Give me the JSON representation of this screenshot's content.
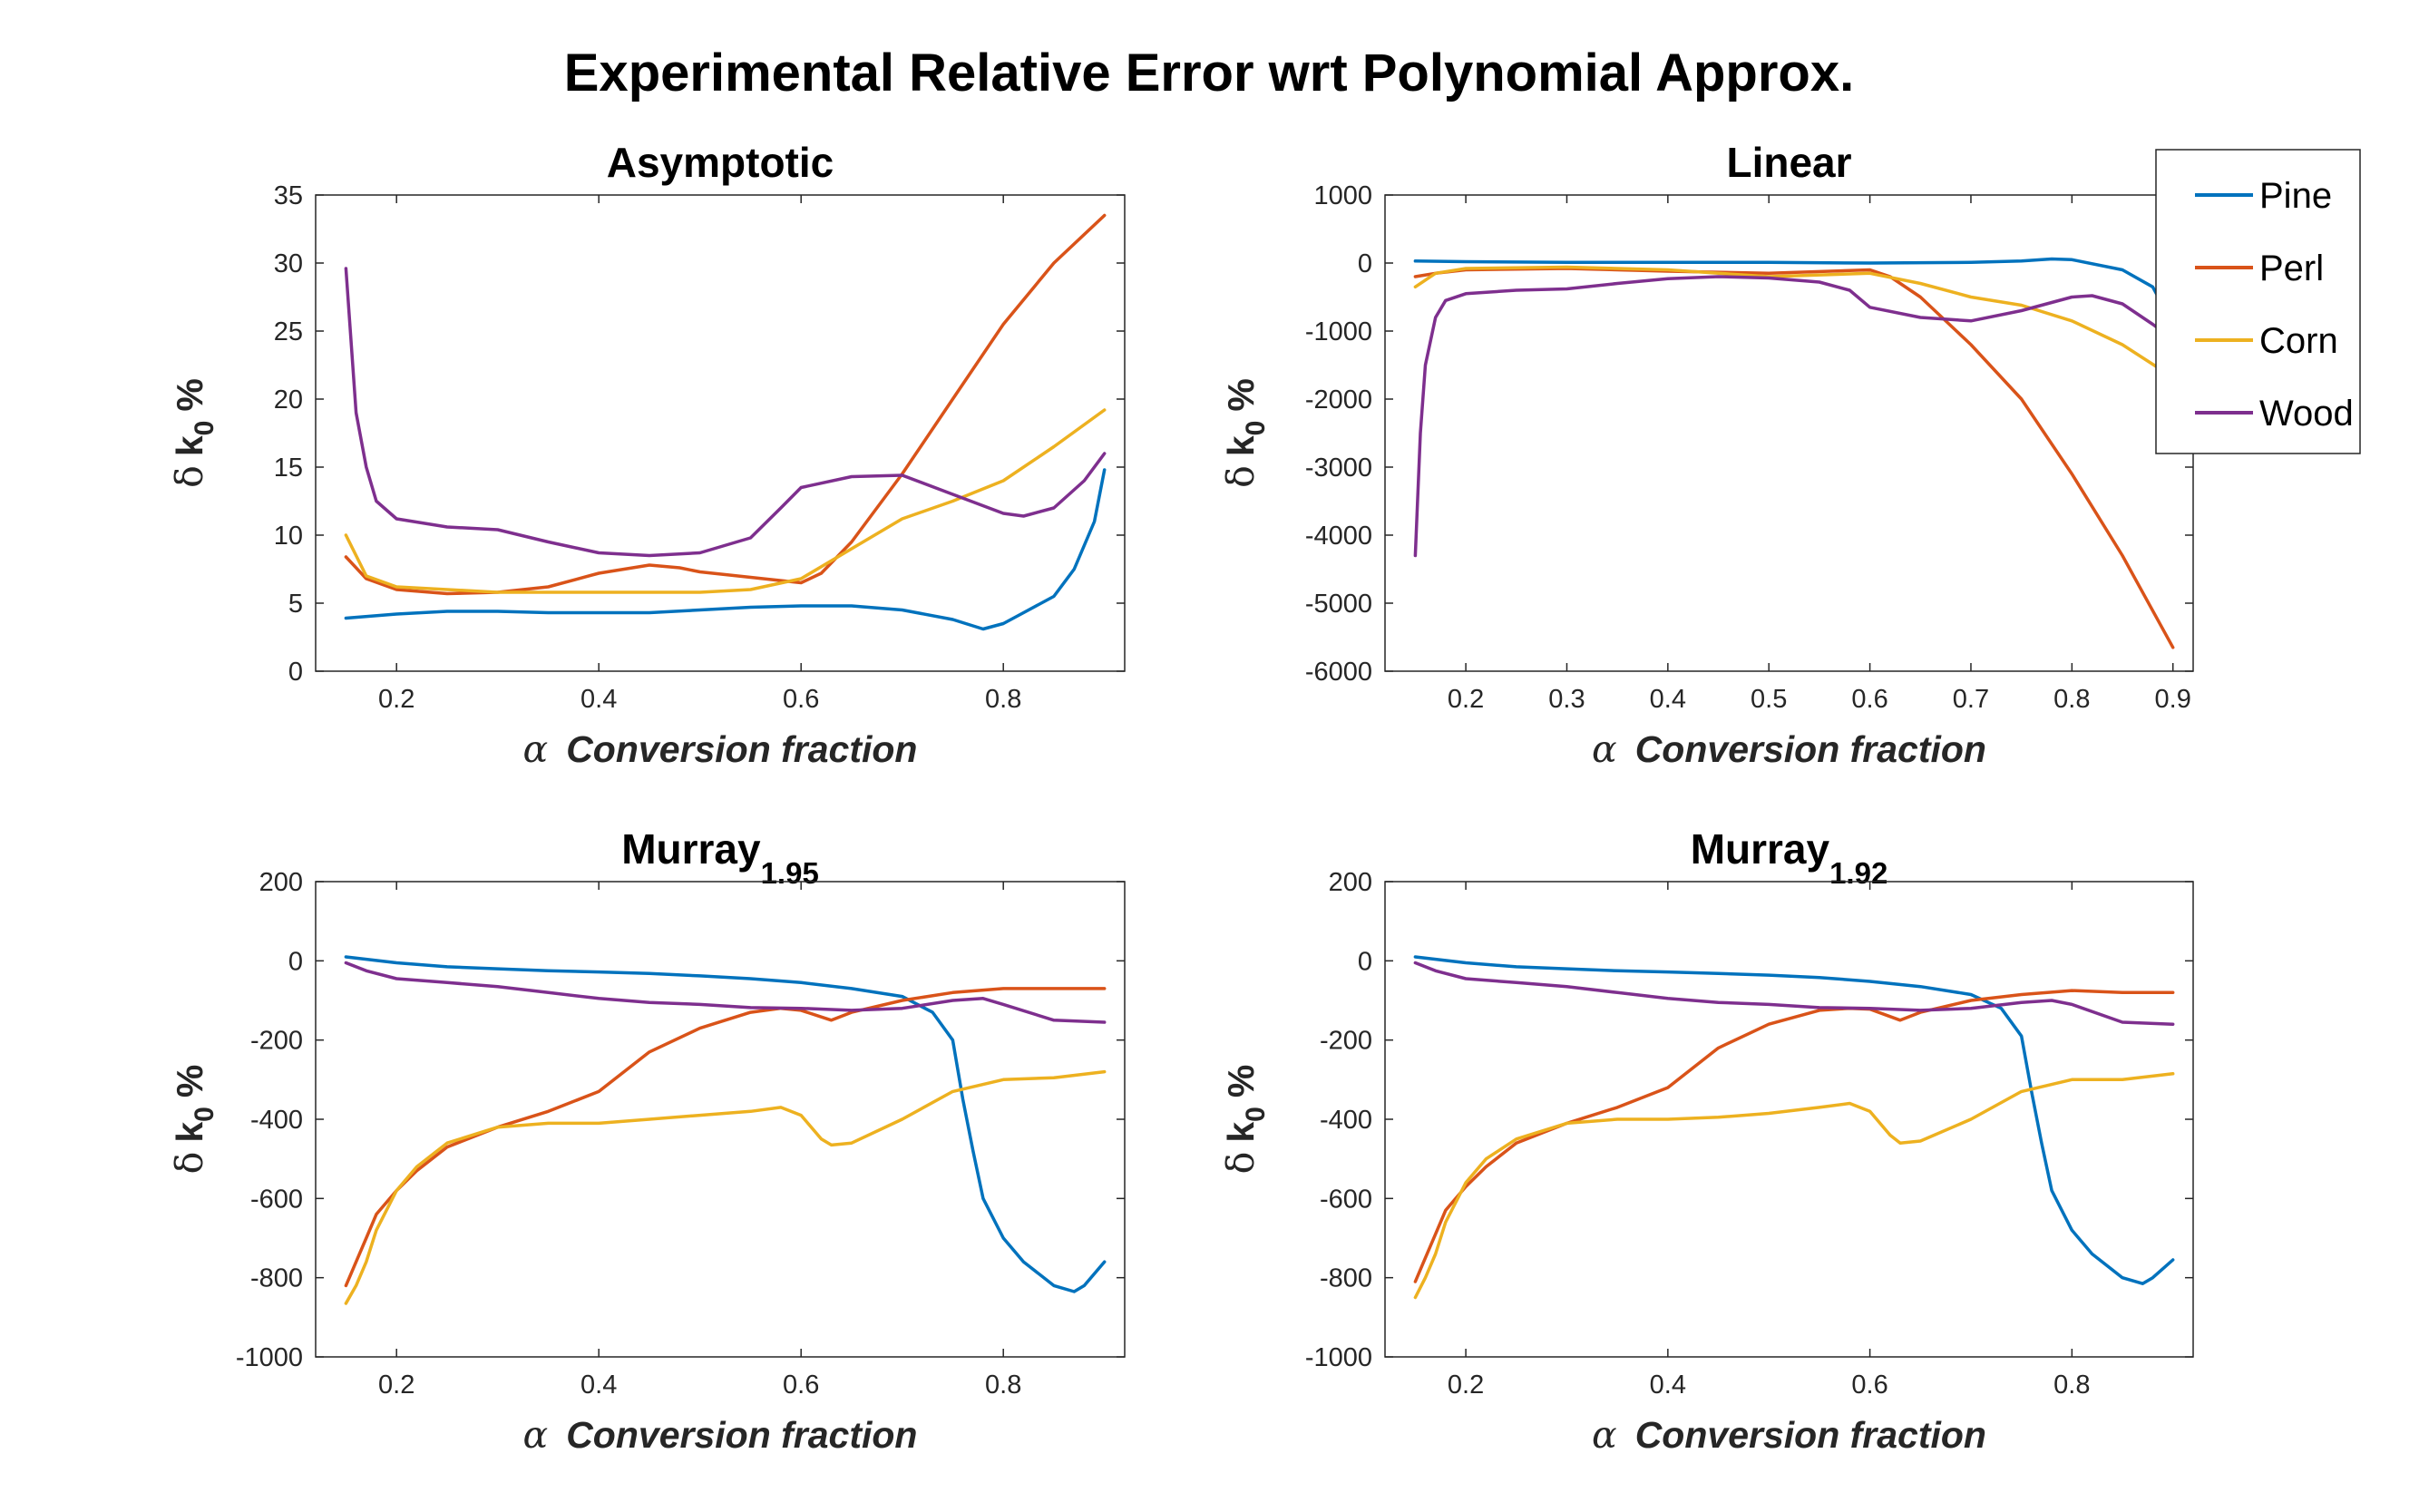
{
  "suptitle": "Experimental Relative Error wrt Polynomial Approx.",
  "legend": {
    "placement": "top-right",
    "entries": [
      {
        "name": "Pine",
        "color": "#0072BD"
      },
      {
        "name": "Perl",
        "color": "#D95319"
      },
      {
        "name": "Corn",
        "color": "#EDB120"
      },
      {
        "name": "Wood",
        "color": "#7E2F8E"
      }
    ]
  },
  "chart_data": [
    {
      "type": "line",
      "title": "Asymptotic",
      "title_sub": "",
      "xlabel_symbol": "α",
      "xlabel": "Conversion fraction",
      "ylabel_symbol": "δ",
      "ylabel_main": "k",
      "ylabel_sub": "0",
      "ylabel_unit": "%",
      "xlim": [
        0.12,
        0.92
      ],
      "ylim": [
        0,
        35
      ],
      "xticks": [
        0.2,
        0.4,
        0.6,
        0.8
      ],
      "yticks": [
        0,
        5,
        10,
        15,
        20,
        25,
        30,
        35
      ],
      "series": [
        {
          "name": "Pine",
          "x": [
            0.15,
            0.2,
            0.25,
            0.3,
            0.35,
            0.4,
            0.45,
            0.5,
            0.55,
            0.6,
            0.65,
            0.7,
            0.75,
            0.78,
            0.8,
            0.82,
            0.85,
            0.87,
            0.89,
            0.9
          ],
          "y": [
            3.9,
            4.2,
            4.4,
            4.4,
            4.3,
            4.3,
            4.3,
            4.5,
            4.7,
            4.8,
            4.8,
            4.5,
            3.8,
            3.1,
            3.5,
            4.3,
            5.5,
            7.5,
            11,
            14.8
          ]
        },
        {
          "name": "Perl",
          "x": [
            0.15,
            0.17,
            0.2,
            0.25,
            0.3,
            0.35,
            0.4,
            0.45,
            0.48,
            0.5,
            0.55,
            0.6,
            0.62,
            0.65,
            0.7,
            0.75,
            0.8,
            0.85,
            0.9
          ],
          "y": [
            8.4,
            6.8,
            6.0,
            5.7,
            5.8,
            6.2,
            7.2,
            7.8,
            7.6,
            7.3,
            6.9,
            6.5,
            7.2,
            9.5,
            14.5,
            20,
            25.5,
            30,
            33.5
          ]
        },
        {
          "name": "Corn",
          "x": [
            0.15,
            0.17,
            0.2,
            0.25,
            0.3,
            0.35,
            0.4,
            0.45,
            0.5,
            0.55,
            0.6,
            0.65,
            0.7,
            0.75,
            0.8,
            0.85,
            0.9
          ],
          "y": [
            10,
            7.0,
            6.2,
            6.0,
            5.8,
            5.8,
            5.8,
            5.8,
            5.8,
            6.0,
            6.8,
            9.0,
            11.2,
            12.5,
            14.0,
            16.5,
            19.2
          ]
        },
        {
          "name": "Wood",
          "x": [
            0.15,
            0.16,
            0.17,
            0.18,
            0.2,
            0.25,
            0.3,
            0.35,
            0.4,
            0.45,
            0.5,
            0.55,
            0.58,
            0.6,
            0.65,
            0.7,
            0.75,
            0.8,
            0.82,
            0.85,
            0.88,
            0.9
          ],
          "y": [
            29.6,
            19,
            15,
            12.5,
            11.2,
            10.6,
            10.4,
            9.5,
            8.7,
            8.5,
            8.7,
            9.8,
            12,
            13.5,
            14.3,
            14.4,
            13,
            11.6,
            11.4,
            12,
            14,
            16
          ]
        }
      ]
    },
    {
      "type": "line",
      "title": "Linear",
      "title_sub": "",
      "xlabel_symbol": "α",
      "xlabel": "Conversion fraction",
      "ylabel_symbol": "δ",
      "ylabel_main": "k",
      "ylabel_sub": "0",
      "ylabel_unit": "%",
      "xlim": [
        0.12,
        0.92
      ],
      "ylim": [
        -6000,
        1000
      ],
      "xticks": [
        0.2,
        0.3,
        0.4,
        0.5,
        0.6,
        0.7,
        0.8,
        0.9
      ],
      "yticks": [
        -6000,
        -5000,
        -4000,
        -3000,
        -2000,
        -1000,
        0,
        1000
      ],
      "series": [
        {
          "name": "Pine",
          "x": [
            0.15,
            0.2,
            0.3,
            0.4,
            0.5,
            0.6,
            0.7,
            0.75,
            0.78,
            0.8,
            0.85,
            0.88,
            0.9
          ],
          "y": [
            30,
            20,
            10,
            10,
            10,
            0,
            10,
            30,
            60,
            50,
            -100,
            -350,
            -900
          ]
        },
        {
          "name": "Perl",
          "x": [
            0.15,
            0.17,
            0.2,
            0.3,
            0.4,
            0.5,
            0.6,
            0.62,
            0.65,
            0.7,
            0.75,
            0.8,
            0.85,
            0.9
          ],
          "y": [
            -200,
            -150,
            -100,
            -80,
            -120,
            -150,
            -100,
            -200,
            -500,
            -1200,
            -2000,
            -3100,
            -4300,
            -5650
          ]
        },
        {
          "name": "Corn",
          "x": [
            0.15,
            0.17,
            0.2,
            0.3,
            0.4,
            0.5,
            0.6,
            0.65,
            0.7,
            0.75,
            0.8,
            0.85,
            0.9
          ],
          "y": [
            -350,
            -150,
            -80,
            -60,
            -100,
            -200,
            -150,
            -300,
            -500,
            -620,
            -850,
            -1200,
            -1680
          ]
        },
        {
          "name": "Wood",
          "x": [
            0.15,
            0.155,
            0.16,
            0.17,
            0.18,
            0.2,
            0.25,
            0.3,
            0.35,
            0.4,
            0.45,
            0.5,
            0.55,
            0.58,
            0.6,
            0.65,
            0.7,
            0.75,
            0.8,
            0.82,
            0.85,
            0.88,
            0.9
          ],
          "y": [
            -4300,
            -2500,
            -1500,
            -800,
            -550,
            -450,
            -400,
            -380,
            -300,
            -230,
            -200,
            -220,
            -280,
            -400,
            -650,
            -800,
            -850,
            -700,
            -500,
            -480,
            -600,
            -900,
            -1120
          ]
        }
      ]
    },
    {
      "type": "line",
      "title": "Murray",
      "title_sub": "1.95",
      "xlabel_symbol": "α",
      "xlabel": "Conversion fraction",
      "ylabel_symbol": "δ",
      "ylabel_main": "k",
      "ylabel_sub": "0",
      "ylabel_unit": "%",
      "xlim": [
        0.12,
        0.92
      ],
      "ylim": [
        -1000,
        200
      ],
      "xticks": [
        0.2,
        0.4,
        0.6,
        0.8
      ],
      "yticks": [
        -1000,
        -800,
        -600,
        -400,
        -200,
        0,
        200
      ],
      "series": [
        {
          "name": "Pine",
          "x": [
            0.15,
            0.2,
            0.25,
            0.3,
            0.35,
            0.4,
            0.45,
            0.5,
            0.55,
            0.6,
            0.65,
            0.7,
            0.73,
            0.75,
            0.76,
            0.77,
            0.78,
            0.8,
            0.82,
            0.85,
            0.87,
            0.88,
            0.9
          ],
          "y": [
            10,
            -5,
            -15,
            -20,
            -25,
            -28,
            -32,
            -38,
            -45,
            -55,
            -70,
            -90,
            -130,
            -200,
            -350,
            -480,
            -600,
            -700,
            -760,
            -820,
            -835,
            -820,
            -760
          ]
        },
        {
          "name": "Perl",
          "x": [
            0.15,
            0.16,
            0.17,
            0.18,
            0.2,
            0.22,
            0.25,
            0.3,
            0.35,
            0.4,
            0.45,
            0.5,
            0.55,
            0.58,
            0.6,
            0.63,
            0.65,
            0.7,
            0.75,
            0.8,
            0.85,
            0.9
          ],
          "y": [
            -820,
            -760,
            -700,
            -640,
            -580,
            -530,
            -470,
            -420,
            -380,
            -330,
            -230,
            -170,
            -130,
            -120,
            -125,
            -150,
            -130,
            -100,
            -80,
            -70,
            -70,
            -70
          ]
        },
        {
          "name": "Corn",
          "x": [
            0.15,
            0.16,
            0.17,
            0.18,
            0.2,
            0.22,
            0.25,
            0.3,
            0.35,
            0.4,
            0.45,
            0.5,
            0.55,
            0.58,
            0.6,
            0.62,
            0.63,
            0.65,
            0.7,
            0.75,
            0.8,
            0.85,
            0.9
          ],
          "y": [
            -865,
            -820,
            -760,
            -680,
            -580,
            -520,
            -460,
            -420,
            -410,
            -410,
            -400,
            -390,
            -380,
            -370,
            -390,
            -450,
            -465,
            -460,
            -400,
            -330,
            -300,
            -295,
            -280
          ]
        },
        {
          "name": "Wood",
          "x": [
            0.15,
            0.17,
            0.2,
            0.25,
            0.3,
            0.35,
            0.4,
            0.45,
            0.5,
            0.55,
            0.6,
            0.65,
            0.7,
            0.75,
            0.78,
            0.8,
            0.85,
            0.9
          ],
          "y": [
            -5,
            -25,
            -45,
            -55,
            -65,
            -80,
            -95,
            -105,
            -110,
            -118,
            -120,
            -125,
            -120,
            -100,
            -95,
            -110,
            -150,
            -155
          ]
        }
      ]
    },
    {
      "type": "line",
      "title": "Murray",
      "title_sub": "1.92",
      "xlabel_symbol": "α",
      "xlabel": "Conversion fraction",
      "ylabel_symbol": "δ",
      "ylabel_main": "k",
      "ylabel_sub": "0",
      "ylabel_unit": "%",
      "xlim": [
        0.12,
        0.92
      ],
      "ylim": [
        -1000,
        200
      ],
      "xticks": [
        0.2,
        0.4,
        0.6,
        0.8
      ],
      "yticks": [
        -1000,
        -800,
        -600,
        -400,
        -200,
        0,
        200
      ],
      "series": [
        {
          "name": "Pine",
          "x": [
            0.15,
            0.2,
            0.25,
            0.3,
            0.35,
            0.4,
            0.45,
            0.5,
            0.55,
            0.6,
            0.65,
            0.7,
            0.73,
            0.75,
            0.76,
            0.77,
            0.78,
            0.8,
            0.82,
            0.85,
            0.87,
            0.88,
            0.9
          ],
          "y": [
            10,
            -5,
            -15,
            -20,
            -25,
            -28,
            -32,
            -36,
            -42,
            -52,
            -65,
            -85,
            -120,
            -190,
            -330,
            -460,
            -580,
            -680,
            -740,
            -800,
            -815,
            -800,
            -755
          ]
        },
        {
          "name": "Perl",
          "x": [
            0.15,
            0.16,
            0.17,
            0.18,
            0.2,
            0.22,
            0.25,
            0.3,
            0.35,
            0.4,
            0.45,
            0.5,
            0.55,
            0.58,
            0.6,
            0.63,
            0.65,
            0.7,
            0.75,
            0.8,
            0.85,
            0.9
          ],
          "y": [
            -810,
            -750,
            -690,
            -630,
            -570,
            -520,
            -460,
            -410,
            -370,
            -320,
            -220,
            -160,
            -125,
            -120,
            -122,
            -150,
            -130,
            -100,
            -85,
            -75,
            -80,
            -80
          ]
        },
        {
          "name": "Corn",
          "x": [
            0.15,
            0.16,
            0.17,
            0.18,
            0.2,
            0.22,
            0.25,
            0.3,
            0.35,
            0.4,
            0.45,
            0.5,
            0.55,
            0.58,
            0.6,
            0.62,
            0.63,
            0.65,
            0.7,
            0.75,
            0.8,
            0.85,
            0.9
          ],
          "y": [
            -850,
            -800,
            -740,
            -660,
            -560,
            -500,
            -450,
            -410,
            -400,
            -400,
            -395,
            -385,
            -370,
            -360,
            -380,
            -440,
            -460,
            -455,
            -400,
            -330,
            -300,
            -300,
            -285
          ]
        },
        {
          "name": "Wood",
          "x": [
            0.15,
            0.17,
            0.2,
            0.25,
            0.3,
            0.35,
            0.4,
            0.45,
            0.5,
            0.55,
            0.6,
            0.65,
            0.7,
            0.75,
            0.78,
            0.8,
            0.85,
            0.9
          ],
          "y": [
            -5,
            -25,
            -45,
            -55,
            -65,
            -80,
            -95,
            -105,
            -110,
            -118,
            -120,
            -125,
            -120,
            -105,
            -100,
            -110,
            -155,
            -160
          ]
        }
      ]
    }
  ]
}
